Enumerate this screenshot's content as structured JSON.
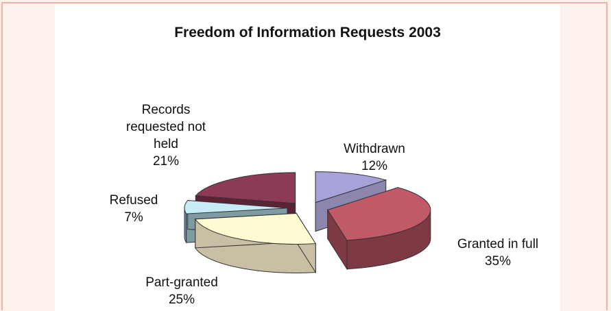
{
  "chart_data": {
    "type": "pie",
    "title": "Freedom of Information Requests 2003",
    "slices": [
      {
        "label": "Withdrawn",
        "value": 12,
        "value_label": "12%",
        "color": "#a7a2d8",
        "side_color": "#8a86ad"
      },
      {
        "label": "Granted in full",
        "value": 35,
        "value_label": "35%",
        "color": "#c05a66",
        "side_color": "#7e3a44"
      },
      {
        "label": "Part-granted",
        "value": 25,
        "value_label": "25%",
        "color": "#fffbd2",
        "side_color": "#c9bfa5"
      },
      {
        "label": "Refused",
        "value": 7,
        "value_label": "7%",
        "color": "#c7ebf7",
        "side_color": "#7e9aa3"
      },
      {
        "label": "Records requested not held",
        "value": 21,
        "value_label": "21%",
        "color": "#8c3a58",
        "side_color": "#5c2337"
      }
    ],
    "legend": "none",
    "three_d": true,
    "exploded": true
  }
}
